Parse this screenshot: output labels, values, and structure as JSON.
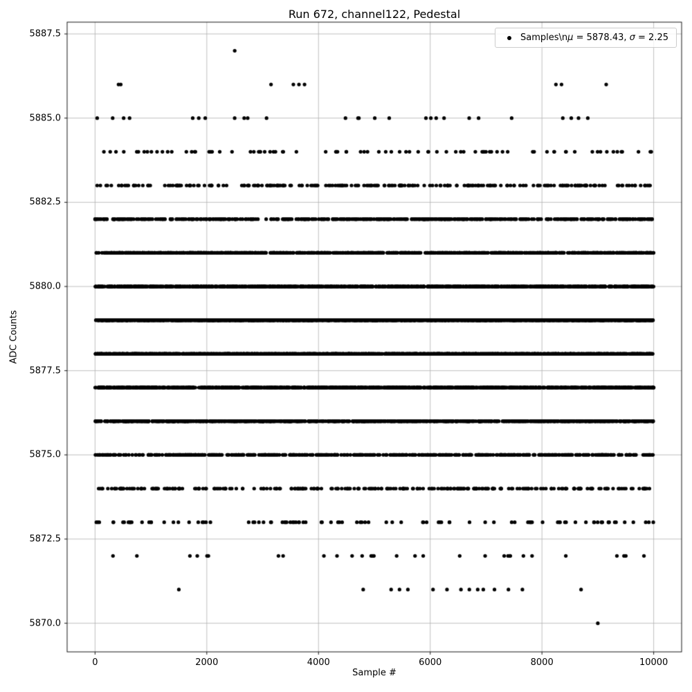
{
  "chart_data": {
    "type": "scatter",
    "title": "Run 672, channel122, Pedestal",
    "xlabel": "Sample #",
    "ylabel": "ADC Counts",
    "xlim": [
      -500,
      10500
    ],
    "ylim": [
      5869.15,
      5887.85
    ],
    "xticks": [
      0,
      2000,
      4000,
      6000,
      8000,
      10000
    ],
    "xticklabels": [
      "0",
      "2000",
      "4000",
      "6000",
      "8000",
      "10000"
    ],
    "yticks": [
      5870.0,
      5872.5,
      5875.0,
      5877.5,
      5880.0,
      5882.5,
      5885.0,
      5887.5
    ],
    "yticklabels": [
      "5870.0",
      "5872.5",
      "5875.0",
      "5877.5",
      "5880.0",
      "5882.5",
      "5885.0",
      "5887.5"
    ],
    "grid": true,
    "grid_color": "#b0b0b0",
    "marker": "dot",
    "marker_color": "#000000",
    "n_samples": 10000,
    "mean": 5878.43,
    "sigma": 2.25,
    "x_range": [
      0,
      10000
    ],
    "legend": {
      "position": "upper right",
      "label": "Samples\\nμ = 5878.43, σ = 2.25",
      "segments": [
        {
          "text": "Samples\\n",
          "italic": false
        },
        {
          "text": "μ",
          "italic": true
        },
        {
          "text": " = 5878.43, ",
          "italic": false
        },
        {
          "text": "σ",
          "italic": true
        },
        {
          "text": " = 2.25",
          "italic": false
        }
      ]
    },
    "levels": [
      {
        "adc": 5887,
        "count": 1,
        "x": [
          2500
        ]
      },
      {
        "adc": 5886,
        "count": 9,
        "x": [
          420,
          460,
          3150,
          3550,
          3650,
          3750,
          8250,
          8350,
          9150
        ]
      },
      {
        "adc": 5885,
        "count": 27
      },
      {
        "adc": 5884,
        "count": 86
      },
      {
        "adc": 5883,
        "count": 230
      },
      {
        "adc": 5882,
        "count": 510
      },
      {
        "adc": 5881,
        "count": 930
      },
      {
        "adc": 5880,
        "count": 1380
      },
      {
        "adc": 5879,
        "count": 1700
      },
      {
        "adc": 5878,
        "count": 1730
      },
      {
        "adc": 5877,
        "count": 1440
      },
      {
        "adc": 5876,
        "count": 990
      },
      {
        "adc": 5875,
        "count": 560
      },
      {
        "adc": 5874,
        "count": 260
      },
      {
        "adc": 5873,
        "count": 100
      },
      {
        "adc": 5872,
        "count": 31
      },
      {
        "adc": 5871,
        "count": 15,
        "x": [
          1500,
          4800,
          5300,
          5450,
          5600,
          6050,
          6300,
          6550,
          6700,
          6850,
          6950,
          7150,
          7400,
          7650,
          8700
        ]
      },
      {
        "adc": 5870,
        "count": 1,
        "x": [
          9000
        ]
      }
    ]
  }
}
